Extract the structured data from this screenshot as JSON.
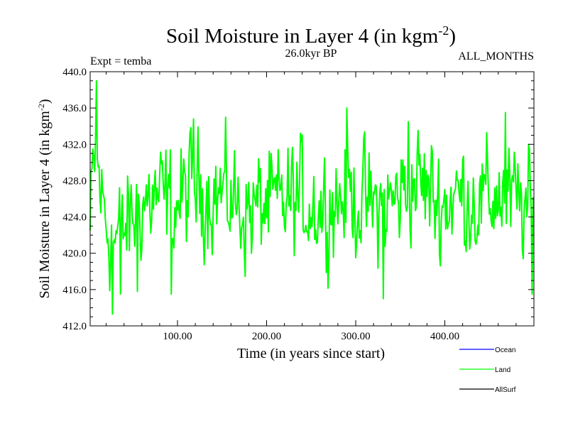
{
  "chart_data": {
    "type": "line",
    "title": "Soil Moisture in Layer 4 (in kgm",
    "title_superscript": "-2",
    "title_close": ")",
    "subtitle_left": "Expt = temba",
    "subtitle_center": "26.0kyr BP",
    "subtitle_right": "ALL_MONTHS",
    "xlabel": "Time (in years since start)",
    "ylabel": "Soil Moisture in Layer 4 (in kgm",
    "ylabel_superscript": "-2",
    "ylabel_close": ")",
    "xlim": [
      2,
      500
    ],
    "ylim": [
      412,
      440
    ],
    "x_ticks": [
      100,
      200,
      300,
      400
    ],
    "x_tick_labels": [
      "100.00",
      "200.00",
      "300.00",
      "400.00"
    ],
    "y_ticks": [
      412,
      416,
      420,
      424,
      428,
      432,
      436,
      440
    ],
    "y_tick_labels": [
      "412.0",
      "416.0",
      "420.0",
      "424.0",
      "428.0",
      "432.0",
      "436.0",
      "440.0"
    ],
    "legend": [
      {
        "name": "Ocean",
        "color": "#0000ff"
      },
      {
        "name": "Land",
        "color": "#00ff00"
      },
      {
        "name": "AllSurf",
        "color": "#000000"
      }
    ],
    "series": [
      {
        "name": "Land",
        "color": "#00ff00",
        "description": "high-frequency annual series, mean ~425.5 kgm-2, fluctuating roughly between 416 and 435",
        "x_start": 2,
        "x_step": 1,
        "n_points": 498,
        "anchor_x": [
          2,
          5,
          8,
          10,
          15,
          20,
          25,
          30,
          35,
          40,
          45,
          50,
          60,
          70,
          80,
          90,
          100,
          110,
          120,
          130,
          140,
          150,
          160,
          170,
          180,
          190,
          200,
          210,
          220,
          230,
          240,
          250,
          260,
          270,
          280,
          290,
          300,
          310,
          320,
          330,
          340,
          350,
          360,
          370,
          380,
          390,
          400,
          410,
          420,
          430,
          440,
          450,
          460,
          470,
          480,
          490,
          500
        ],
        "anchor_mean": [
          422.0,
          428.0,
          431.0,
          429.5,
          426.0,
          423.5,
          422.0,
          421.5,
          422.0,
          422.5,
          423.0,
          424.0,
          425.5,
          426.0,
          426.0,
          425.5,
          425.5,
          426.5,
          427.5,
          427.0,
          426.5,
          426.5,
          426.0,
          425.0,
          424.5,
          425.0,
          425.5,
          425.0,
          425.5,
          426.0,
          426.0,
          425.5,
          425.0,
          425.5,
          426.0,
          426.5,
          426.0,
          425.5,
          425.0,
          425.0,
          425.5,
          426.5,
          427.5,
          428.0,
          427.0,
          426.0,
          425.5,
          426.0,
          426.5,
          426.0,
          425.5,
          426.0,
          426.5,
          426.0,
          425.5,
          425.0,
          424.5
        ],
        "noise_amplitude": 3.4,
        "extremes": [
          {
            "x": 9,
            "y": 439.0
          },
          {
            "x": 27,
            "y": 413.3
          },
          {
            "x": 36,
            "y": 415.5
          },
          {
            "x": 55,
            "y": 415.8
          },
          {
            "x": 93,
            "y": 415.5
          },
          {
            "x": 118,
            "y": 434.8
          },
          {
            "x": 290,
            "y": 436.0
          },
          {
            "x": 331,
            "y": 415.0
          },
          {
            "x": 359,
            "y": 434.5
          },
          {
            "x": 468,
            "y": 435.5
          },
          {
            "x": 498,
            "y": 415.5
          }
        ]
      },
      {
        "name": "Ocean",
        "color": "#0000ff",
        "values": []
      },
      {
        "name": "AllSurf",
        "color": "#000000",
        "values": []
      }
    ]
  }
}
